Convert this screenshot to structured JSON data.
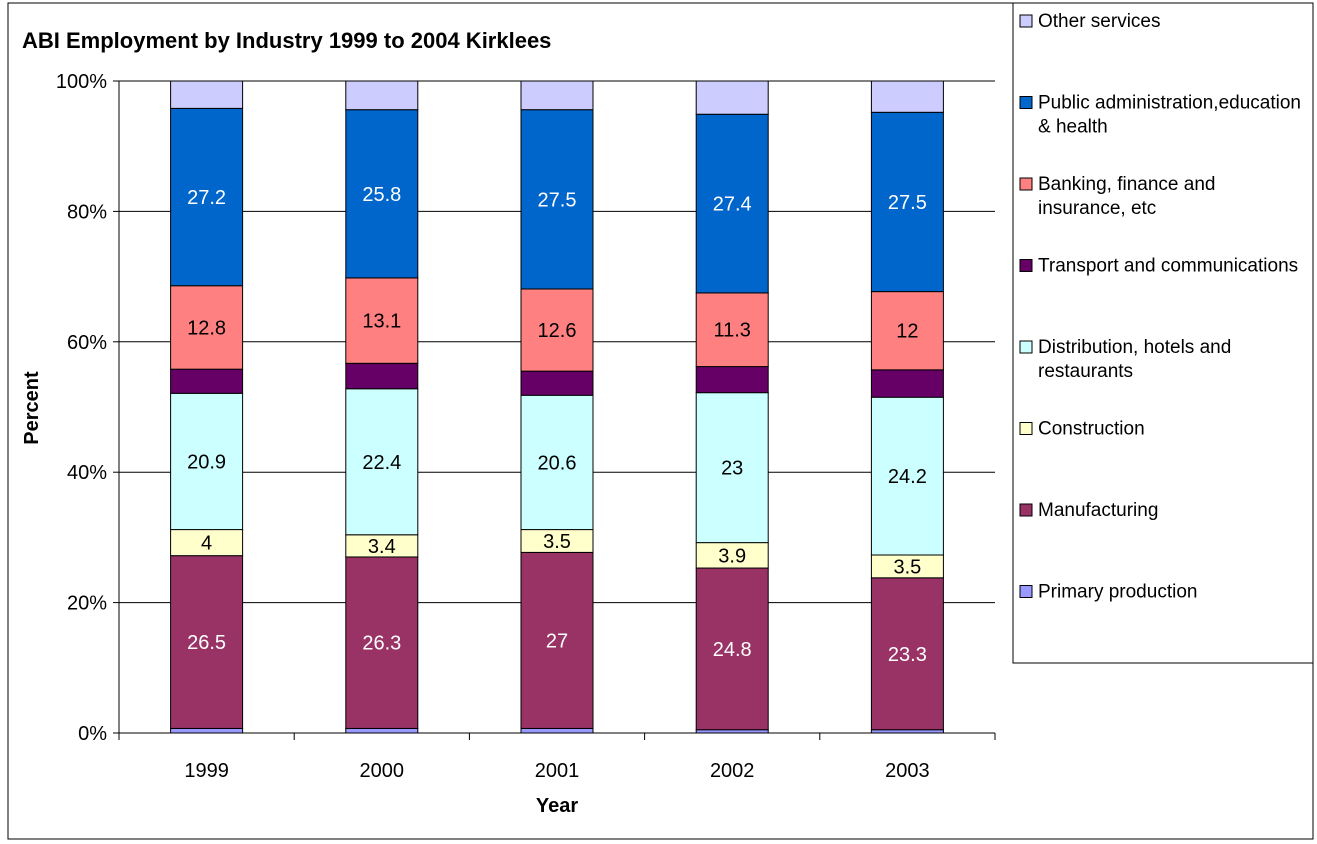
{
  "chart_data": {
    "type": "bar",
    "stacked": true,
    "percent_stacked": true,
    "title": "ABI Employment by Industry 1999 to 2004 Kirklees",
    "xlabel": "Year",
    "ylabel": "Percent",
    "ylim": [
      0,
      100
    ],
    "y_ticks": [
      "0%",
      "20%",
      "40%",
      "60%",
      "80%",
      "100%"
    ],
    "grid": true,
    "legend_position": "right",
    "categories": [
      "1999",
      "2000",
      "2001",
      "2002",
      "2003"
    ],
    "series": [
      {
        "name": "Primary production",
        "color": "#9999FF",
        "values": [
          0.7,
          0.7,
          0.7,
          0.5,
          0.5
        ],
        "labels": [
          "",
          "",
          "",
          "",
          ""
        ],
        "label_color": "#000000"
      },
      {
        "name": "Manufacturing",
        "color": "#993366",
        "values": [
          26.5,
          26.3,
          27,
          24.8,
          23.3
        ],
        "labels": [
          "26.5",
          "26.3",
          "27",
          "24.8",
          "23.3"
        ],
        "label_color": "#FFFFFF"
      },
      {
        "name": "Construction",
        "color": "#FFFFCC",
        "values": [
          4,
          3.4,
          3.5,
          3.9,
          3.5
        ],
        "labels": [
          "4",
          "3.4",
          "3.5",
          "3.9",
          "3.5"
        ],
        "label_color": "#000000"
      },
      {
        "name": "Distribution, hotels and restaurants",
        "color": "#CCFFFF",
        "values": [
          20.9,
          22.4,
          20.6,
          23,
          24.2
        ],
        "labels": [
          "20.9",
          "22.4",
          "20.6",
          "23",
          "24.2"
        ],
        "label_color": "#000000"
      },
      {
        "name": "Transport and communications",
        "color": "#660066",
        "values": [
          3.7,
          3.9,
          3.7,
          4,
          4.2
        ],
        "labels": [
          "",
          "",
          "",
          "",
          ""
        ],
        "label_color": "#FFFFFF"
      },
      {
        "name": "Banking, finance and insurance, etc",
        "color": "#FF8080",
        "values": [
          12.8,
          13.1,
          12.6,
          11.3,
          12
        ],
        "labels": [
          "12.8",
          "13.1",
          "12.6",
          "11.3",
          "12"
        ],
        "label_color": "#000000"
      },
      {
        "name": "Public administration,education & health",
        "color": "#0066CC",
        "values": [
          27.2,
          25.8,
          27.5,
          27.4,
          27.5
        ],
        "labels": [
          "27.2",
          "25.8",
          "27.5",
          "27.4",
          "27.5"
        ],
        "label_color": "#FFFFFF"
      },
      {
        "name": "Other services",
        "color": "#CCCCFF",
        "values": [
          4.2,
          4.4,
          4.4,
          5.1,
          4.8
        ],
        "labels": [
          "",
          "",
          "",
          "",
          ""
        ],
        "label_color": "#000000"
      }
    ],
    "legend_order": [
      "Other services",
      "Public administration,education & health",
      "Banking, finance and insurance, etc",
      "Transport and communications",
      "Distribution, hotels and restaurants",
      "Construction",
      "Manufacturing",
      "Primary production"
    ]
  }
}
